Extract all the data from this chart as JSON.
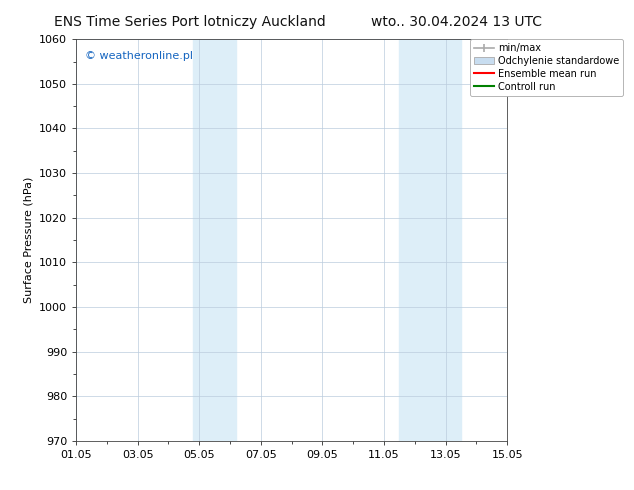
{
  "title_left": "ENS Time Series Port lotniczy Auckland",
  "title_right": "wto.. 30.04.2024 13 UTC",
  "ylabel": "Surface Pressure (hPa)",
  "ylim": [
    970,
    1060
  ],
  "yticks": [
    970,
    980,
    990,
    1000,
    1010,
    1020,
    1030,
    1040,
    1050,
    1060
  ],
  "xlim_start": 0,
  "xlim_end": 14,
  "xtick_labels": [
    "01.05",
    "03.05",
    "05.05",
    "07.05",
    "09.05",
    "11.05",
    "13.05",
    "15.05"
  ],
  "xtick_positions": [
    0,
    2,
    4,
    6,
    8,
    10,
    12,
    14
  ],
  "shaded_regions": [
    {
      "x_start": 3.8,
      "x_end": 5.2,
      "color": "#ddeef8"
    },
    {
      "x_start": 10.5,
      "x_end": 12.5,
      "color": "#ddeef8"
    }
  ],
  "watermark": "© weatheronline.pl",
  "watermark_color": "#1565C0",
  "legend_entries": [
    {
      "label": "min/max",
      "color": "#aaaaaa",
      "type": "errorbar"
    },
    {
      "label": "Odchylenie standardowe",
      "color": "#c8ddf0",
      "type": "fill"
    },
    {
      "label": "Ensemble mean run",
      "color": "red",
      "type": "line"
    },
    {
      "label": "Controll run",
      "color": "green",
      "type": "line"
    }
  ],
  "background_color": "#ffffff",
  "grid_color": "#bbccdd",
  "title_fontsize": 10,
  "axis_fontsize": 8,
  "watermark_fontsize": 8,
  "legend_fontsize": 7
}
